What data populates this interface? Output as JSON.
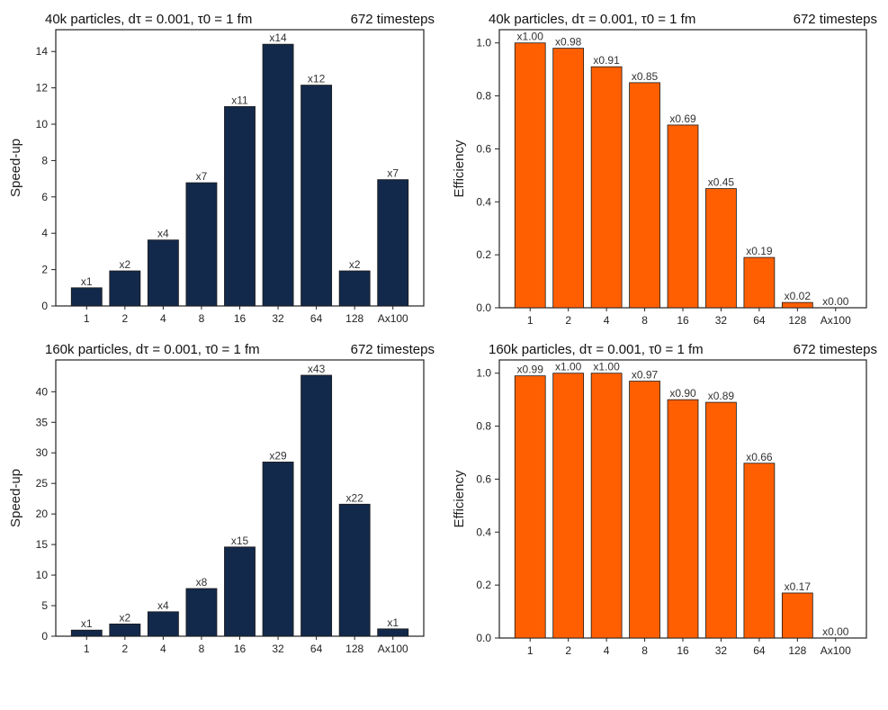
{
  "chart_data": [
    {
      "id": "speedup-40k",
      "type": "bar",
      "title": "40k particles, dτ = 0.001, τ0 = 1 fm",
      "title_right": "672 timesteps",
      "ylabel": "Speed-up",
      "xlabel": "",
      "ylim": [
        0,
        15.2
      ],
      "yticks": [
        0,
        2,
        4,
        6,
        8,
        10,
        12,
        14
      ],
      "categories": [
        "1",
        "2",
        "4",
        "8",
        "16",
        "32",
        "64",
        "128",
        "Ax100"
      ],
      "values": [
        1,
        1.93,
        3.63,
        6.78,
        10.97,
        14.4,
        12.15,
        1.93,
        6.95
      ],
      "labels": [
        "x1",
        "x2",
        "x4",
        "x7",
        "x11",
        "x14",
        "x12",
        "x2",
        "x7"
      ],
      "bar_color": "#13294b"
    },
    {
      "id": "efficiency-40k",
      "type": "bar",
      "title": "40k particles, dτ = 0.001, τ0 = 1 fm",
      "title_right": "672 timesteps",
      "ylabel": "Efficiency",
      "xlabel": "",
      "ylim": [
        0,
        1.05
      ],
      "yticks": [
        0.0,
        0.2,
        0.4,
        0.6,
        0.8,
        1.0
      ],
      "categories": [
        "1",
        "2",
        "4",
        "8",
        "16",
        "32",
        "64",
        "128",
        "Ax100"
      ],
      "values": [
        1.0,
        0.98,
        0.91,
        0.85,
        0.69,
        0.45,
        0.19,
        0.02,
        0.0
      ],
      "labels": [
        "x1.00",
        "x0.98",
        "x0.91",
        "x0.85",
        "x0.69",
        "x0.45",
        "x0.19",
        "x0.02",
        "x0.00"
      ],
      "bar_color": "#ff5f00"
    },
    {
      "id": "speedup-160k",
      "type": "bar",
      "title": "160k particles, dτ = 0.001, τ0 = 1 fm",
      "title_right": "672 timesteps",
      "ylabel": "Speed-up",
      "xlabel": "",
      "ylim": [
        0,
        45.2
      ],
      "yticks": [
        0,
        5,
        10,
        15,
        20,
        25,
        30,
        35,
        40
      ],
      "categories": [
        "1",
        "2",
        "4",
        "8",
        "16",
        "32",
        "64",
        "128",
        "Ax100"
      ],
      "values": [
        1,
        2,
        4,
        7.8,
        14.6,
        28.5,
        42.7,
        21.6,
        1.2
      ],
      "labels": [
        "x1",
        "x2",
        "x4",
        "x8",
        "x15",
        "x29",
        "x43",
        "x22",
        "x1"
      ],
      "bar_color": "#13294b"
    },
    {
      "id": "efficiency-160k",
      "type": "bar",
      "title": "160k particles, dτ = 0.001, τ0 = 1 fm",
      "title_right": "672 timesteps",
      "ylabel": "Efficiency",
      "xlabel": "",
      "ylim": [
        0,
        1.05
      ],
      "yticks": [
        0.0,
        0.2,
        0.4,
        0.6,
        0.8,
        1.0
      ],
      "categories": [
        "1",
        "2",
        "4",
        "8",
        "16",
        "32",
        "64",
        "128",
        "Ax100"
      ],
      "values": [
        0.99,
        1.0,
        1.0,
        0.97,
        0.9,
        0.89,
        0.66,
        0.17,
        0.0
      ],
      "labels": [
        "x0.99",
        "x1.00",
        "x1.00",
        "x0.97",
        "x0.90",
        "x0.89",
        "x0.66",
        "x0.17",
        "x0.00"
      ],
      "bar_color": "#ff5f00"
    }
  ]
}
